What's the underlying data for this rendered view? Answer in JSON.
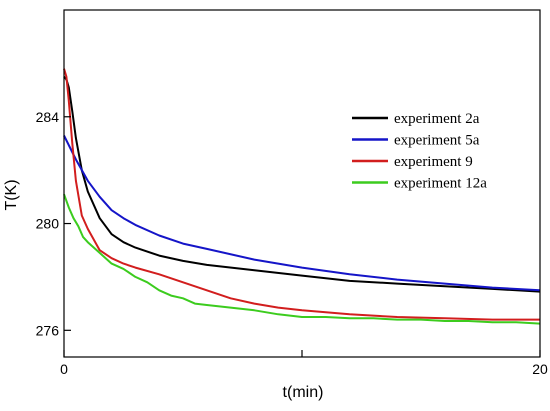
{
  "chart_data": {
    "type": "line",
    "xlabel": "t(min)",
    "ylabel": "T(K)",
    "xlim": [
      0,
      20
    ],
    "ylim": [
      275,
      288
    ],
    "xticks": [
      0,
      10,
      20
    ],
    "xtick_labels": [
      "0",
      "",
      "20"
    ],
    "yticks": [
      276,
      280,
      284
    ],
    "grid": false,
    "legend_position": "upper-right",
    "series": [
      {
        "name": "experiment 2a",
        "color": "#000000",
        "x": [
          0,
          0.1,
          0.2,
          0.35,
          0.5,
          0.75,
          1.0,
          1.5,
          2.0,
          2.5,
          3.0,
          4.0,
          5.0,
          6.0,
          8.0,
          10.0,
          12.0,
          14.0,
          16.0,
          18.0,
          20.0
        ],
        "y": [
          285.5,
          285.4,
          285.1,
          284.2,
          283.2,
          282.0,
          281.2,
          280.2,
          279.6,
          279.3,
          279.1,
          278.8,
          278.6,
          278.45,
          278.25,
          278.05,
          277.85,
          277.75,
          277.65,
          277.55,
          277.45
        ]
      },
      {
        "name": "experiment 5a",
        "color": "#1515c8",
        "x": [
          0,
          0.5,
          1.0,
          1.5,
          2.0,
          2.5,
          3.0,
          4.0,
          5.0,
          6.0,
          8.0,
          10.0,
          12.0,
          14.0,
          16.0,
          18.0,
          20.0
        ],
        "y": [
          283.3,
          282.4,
          281.6,
          281.0,
          280.5,
          280.2,
          279.95,
          279.55,
          279.25,
          279.05,
          278.65,
          278.35,
          278.1,
          277.9,
          277.75,
          277.6,
          277.5
        ]
      },
      {
        "name": "experiment 9",
        "color": "#d21e1e",
        "x": [
          0,
          0.1,
          0.2,
          0.35,
          0.5,
          0.75,
          1.0,
          1.5,
          2.0,
          2.5,
          3.0,
          4.0,
          5.0,
          6.0,
          7.0,
          8.0,
          9.0,
          10.0,
          12.0,
          14.0,
          16.0,
          18.0,
          20.0
        ],
        "y": [
          285.8,
          285.5,
          284.6,
          283.0,
          281.6,
          280.3,
          279.8,
          279.0,
          278.7,
          278.5,
          278.35,
          278.1,
          277.8,
          277.5,
          277.2,
          277.0,
          276.85,
          276.75,
          276.6,
          276.5,
          276.45,
          276.4,
          276.4
        ]
      },
      {
        "name": "experiment 12a",
        "color": "#3ccc1e",
        "x": [
          0,
          0.2,
          0.4,
          0.6,
          0.8,
          1.0,
          1.5,
          2.0,
          2.5,
          3.0,
          3.5,
          4.0,
          4.5,
          5.0,
          5.5,
          6.0,
          7.0,
          8.0,
          9.0,
          10.0,
          11.0,
          12.0,
          13.0,
          14.0,
          15.0,
          16.0,
          17.0,
          18.0,
          19.0,
          20.0
        ],
        "y": [
          281.1,
          280.6,
          280.2,
          279.9,
          279.5,
          279.3,
          278.9,
          278.5,
          278.3,
          278.0,
          277.8,
          277.5,
          277.3,
          277.2,
          277.0,
          276.95,
          276.85,
          276.75,
          276.6,
          276.5,
          276.5,
          276.45,
          276.45,
          276.4,
          276.4,
          276.35,
          276.35,
          276.3,
          276.3,
          276.25
        ]
      }
    ]
  }
}
